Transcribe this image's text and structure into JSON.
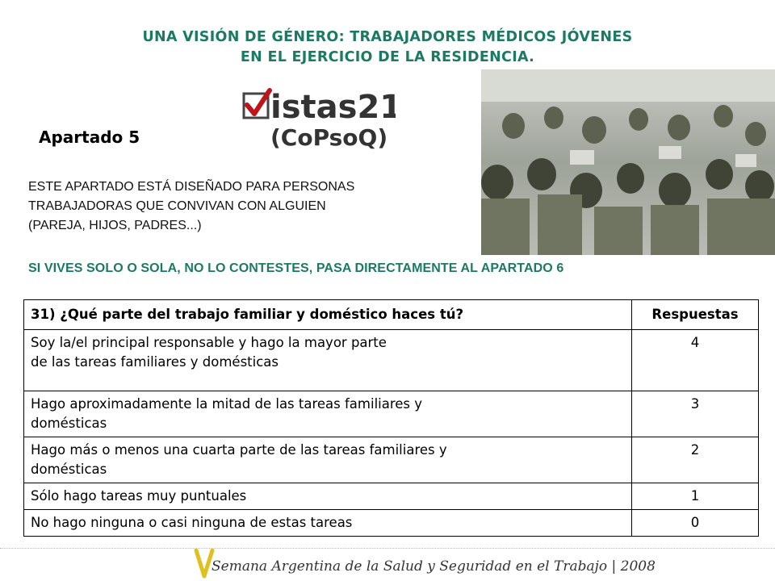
{
  "header": {
    "title_line1": "UNA VISIÓN DE GÉNERO: TRABAJADORES MÉDICOS JÓVENES",
    "title_line2": "EN EL EJERCICIO DE LA RESIDENCIA."
  },
  "logo": {
    "main": "istas21",
    "sub": "(CoPsoQ)"
  },
  "section": {
    "heading": "Apartado 5",
    "intro_line1": "ESTE APARTADO ESTÁ DISEÑADO PARA PERSONAS",
    "intro_line2": "TRABAJADORAS QUE CONVIVAN CON ALGUIEN",
    "intro_line3": "(PAREJA, HIJOS, PADRES...)",
    "warning": "SI VIVES SOLO O SOLA, NO LO CONTESTES, PASA DIRECTAMENTE AL APARTADO 6"
  },
  "table": {
    "question": "31) ¿Qué parte del trabajo familiar y doméstico haces tú?",
    "answers_header": "Respuestas",
    "rows": [
      {
        "line1": "Soy la/el principal responsable y hago la mayor parte",
        "line2": "de las tareas familiares y domésticas",
        "value": "4"
      },
      {
        "line1": "Hago aproximadamente la mitad de las tareas familiares y",
        "line2": "domésticas",
        "value": "3"
      },
      {
        "line1": "Hago más o menos una cuarta parte de las tareas familiares y",
        "line2": "domésticas",
        "value": "2"
      },
      {
        "line1": "Sólo hago tareas muy puntuales",
        "line2": "",
        "value": "1"
      },
      {
        "line1": "No hago ninguna o casi ninguna de estas tareas",
        "line2": "",
        "value": "0"
      }
    ]
  },
  "footer": {
    "text": "Semana Argentina de la Salud y Seguridad en el Trabajo | 2008"
  },
  "colors": {
    "accent": "#1c7a63",
    "logo_red": "#c0141c",
    "footer_v": "#e0c020"
  }
}
